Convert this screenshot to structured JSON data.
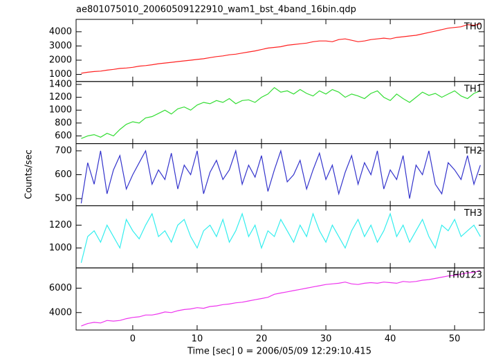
{
  "chart_data": {
    "type": "line",
    "title": "ae801075010_20060509122910_wam1_bst_4band_16bin.qdp",
    "x_label": "Time [sec] 0 = 2006/05/09 12:29:10.415",
    "y_label": "Counts/sec",
    "x": [
      -8,
      -7,
      -6,
      -5,
      -4,
      -3,
      -2,
      -1,
      0,
      1,
      2,
      3,
      4,
      5,
      6,
      7,
      8,
      9,
      10,
      11,
      12,
      13,
      14,
      15,
      16,
      17,
      18,
      19,
      20,
      21,
      22,
      23,
      24,
      25,
      26,
      27,
      28,
      29,
      30,
      31,
      32,
      33,
      34,
      35,
      36,
      37,
      38,
      39,
      40,
      41,
      42,
      43,
      44,
      45,
      46,
      47,
      48,
      49,
      50,
      51,
      52,
      53,
      54
    ],
    "xlim": [
      -8.8,
      54.6
    ],
    "xticks": [
      0,
      10,
      20,
      30,
      40,
      50
    ],
    "series": [
      {
        "name": "TH0",
        "color": "#ff2020",
        "ylim": [
          500,
          4870
        ],
        "yticks": [
          1000,
          2000,
          3000,
          4000
        ],
        "values": [
          1080,
          1150,
          1200,
          1230,
          1300,
          1350,
          1420,
          1450,
          1500,
          1580,
          1620,
          1680,
          1750,
          1800,
          1850,
          1900,
          1950,
          2000,
          2050,
          2100,
          2180,
          2250,
          2300,
          2380,
          2420,
          2500,
          2580,
          2650,
          2750,
          2850,
          2900,
          2950,
          3050,
          3100,
          3150,
          3200,
          3300,
          3350,
          3350,
          3300,
          3450,
          3500,
          3400,
          3300,
          3350,
          3450,
          3500,
          3550,
          3500,
          3600,
          3650,
          3700,
          3750,
          3850,
          3950,
          4050,
          4150,
          4250,
          4300,
          4350,
          4500,
          4450,
          4550
        ]
      },
      {
        "name": "TH1",
        "color": "#33dd33",
        "ylim": [
          480,
          1445
        ],
        "yticks": [
          600,
          800,
          1000,
          1200,
          1400
        ],
        "values": [
          560,
          600,
          620,
          580,
          640,
          600,
          700,
          780,
          820,
          800,
          880,
          900,
          950,
          1000,
          940,
          1020,
          1050,
          1000,
          1080,
          1120,
          1100,
          1150,
          1120,
          1180,
          1100,
          1150,
          1160,
          1120,
          1200,
          1250,
          1350,
          1280,
          1300,
          1250,
          1320,
          1260,
          1220,
          1300,
          1250,
          1320,
          1280,
          1200,
          1250,
          1220,
          1180,
          1260,
          1300,
          1200,
          1150,
          1250,
          1180,
          1120,
          1200,
          1280,
          1230,
          1260,
          1200,
          1250,
          1300,
          1220,
          1180,
          1260,
          1300
        ]
      },
      {
        "name": "TH2",
        "color": "#3333cc",
        "ylim": [
          470,
          730
        ],
        "yticks": [
          500,
          600,
          700
        ],
        "values": [
          480,
          650,
          560,
          700,
          520,
          620,
          680,
          540,
          600,
          650,
          700,
          560,
          620,
          580,
          690,
          540,
          640,
          600,
          700,
          520,
          610,
          660,
          580,
          620,
          700,
          560,
          640,
          590,
          680,
          530,
          620,
          700,
          570,
          600,
          660,
          540,
          620,
          690,
          580,
          640,
          520,
          610,
          680,
          560,
          650,
          600,
          700,
          540,
          620,
          580,
          680,
          500,
          640,
          600,
          700,
          560,
          520,
          650,
          620,
          580,
          680,
          560,
          640
        ]
      },
      {
        "name": "TH3",
        "color": "#33eeee",
        "ylim": [
          825,
          1370
        ],
        "yticks": [
          1000,
          1200
        ],
        "values": [
          870,
          1100,
          1150,
          1050,
          1200,
          1100,
          1000,
          1250,
          1150,
          1080,
          1200,
          1300,
          1100,
          1150,
          1050,
          1200,
          1250,
          1100,
          1000,
          1150,
          1200,
          1100,
          1250,
          1050,
          1150,
          1300,
          1100,
          1200,
          1000,
          1150,
          1100,
          1250,
          1150,
          1050,
          1200,
          1100,
          1300,
          1150,
          1050,
          1200,
          1100,
          1000,
          1150,
          1250,
          1100,
          1200,
          1050,
          1150,
          1300,
          1100,
          1200,
          1050,
          1150,
          1250,
          1100,
          1000,
          1200,
          1150,
          1250,
          1100,
          1150,
          1200,
          1100
        ]
      },
      {
        "name": "TH0123",
        "color": "#ee33ee",
        "ylim": [
          2570,
          7660
        ],
        "yticks": [
          4000,
          6000
        ],
        "values": [
          2900,
          3100,
          3200,
          3150,
          3350,
          3300,
          3350,
          3500,
          3600,
          3650,
          3800,
          3800,
          3900,
          4050,
          4000,
          4150,
          4250,
          4300,
          4400,
          4350,
          4500,
          4550,
          4650,
          4700,
          4800,
          4850,
          4950,
          5050,
          5150,
          5250,
          5500,
          5600,
          5700,
          5800,
          5900,
          6000,
          6100,
          6200,
          6300,
          6350,
          6400,
          6500,
          6350,
          6300,
          6400,
          6450,
          6400,
          6500,
          6450,
          6400,
          6550,
          6500,
          6550,
          6650,
          6700,
          6800,
          6900,
          7000,
          7050,
          7150,
          7250,
          7300,
          7450
        ]
      }
    ]
  }
}
